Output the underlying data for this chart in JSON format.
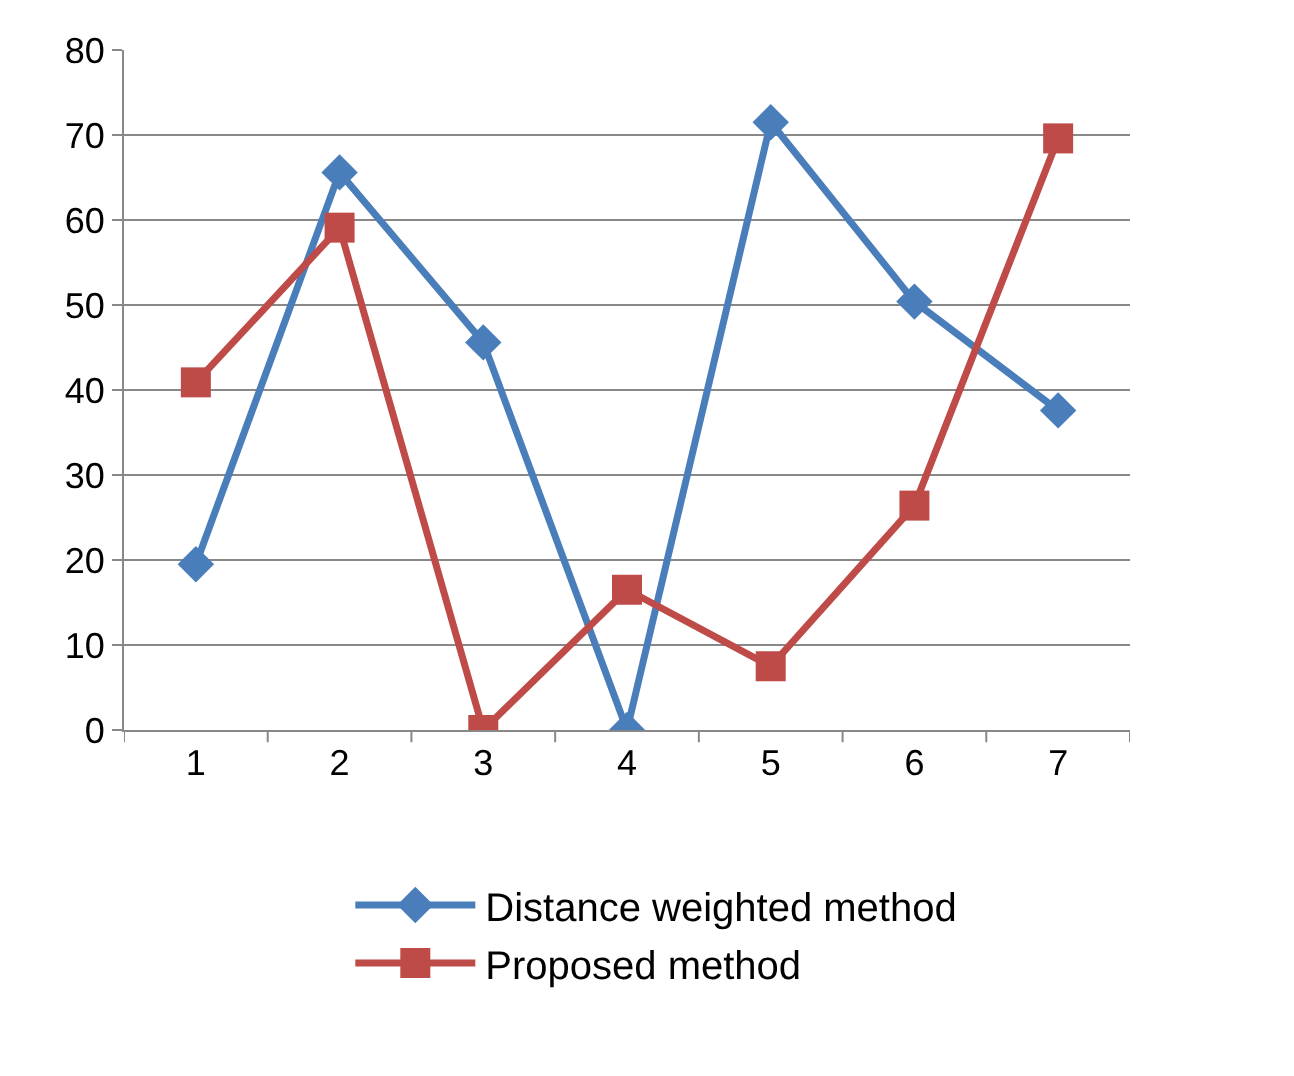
{
  "chart_data": {
    "type": "line",
    "categories": [
      "1",
      "2",
      "3",
      "4",
      "5",
      "6",
      "7"
    ],
    "series": [
      {
        "name": "Distance weighted method",
        "color": "#4a7ebb",
        "marker": "diamond",
        "values": [
          19.5,
          65.6,
          45.6,
          0,
          71.5,
          50.4,
          37.6
        ]
      },
      {
        "name": "Proposed method",
        "color": "#be4b48",
        "marker": "square",
        "values": [
          40.9,
          59.1,
          0,
          16.5,
          7.5,
          26.4,
          69.6
        ]
      }
    ],
    "ylim": [
      0,
      80
    ],
    "yticks": [
      0,
      10,
      20,
      30,
      40,
      50,
      60,
      70,
      80
    ],
    "grid": "y",
    "legend": "bottom",
    "line_style": "solid"
  }
}
